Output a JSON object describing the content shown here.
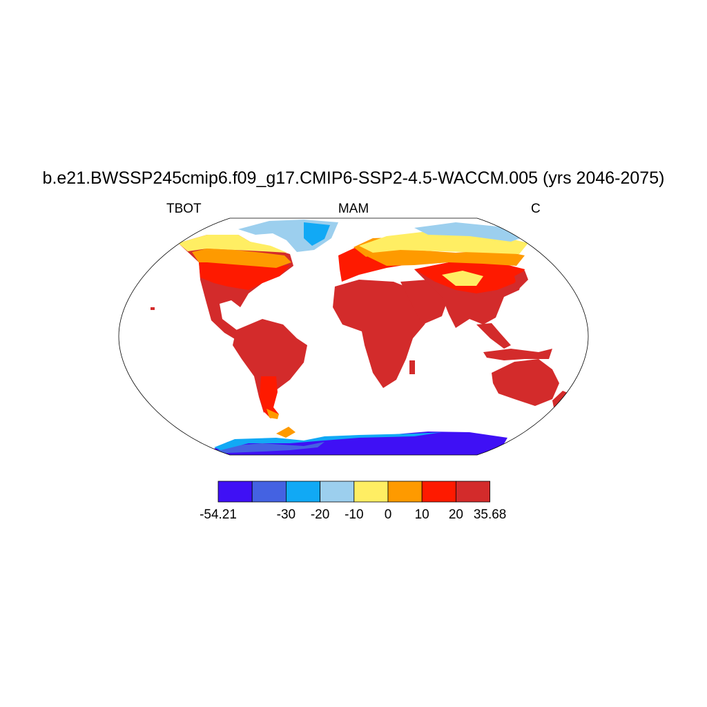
{
  "title": "b.e21.BWSSP245cmip6.f09_g17.CMIP6-SSP2-4.5-WACCM.005 (yrs 2046-2075)",
  "subtitle_left": "TBOT",
  "subtitle_center": "MAM",
  "subtitle_right": "C",
  "colorbar": {
    "colors": [
      "#3f10f5",
      "#4462e2",
      "#11a9f5",
      "#9ccfee",
      "#ffee63",
      "#fe9a00",
      "#fe1a00",
      "#d32b2b"
    ],
    "labels": [
      "-54.21",
      "-30",
      "-20",
      "-10",
      "0",
      "10",
      "20",
      "35.68"
    ],
    "label_positions": [
      0,
      2,
      3,
      4,
      5,
      6,
      7,
      8
    ]
  }
}
